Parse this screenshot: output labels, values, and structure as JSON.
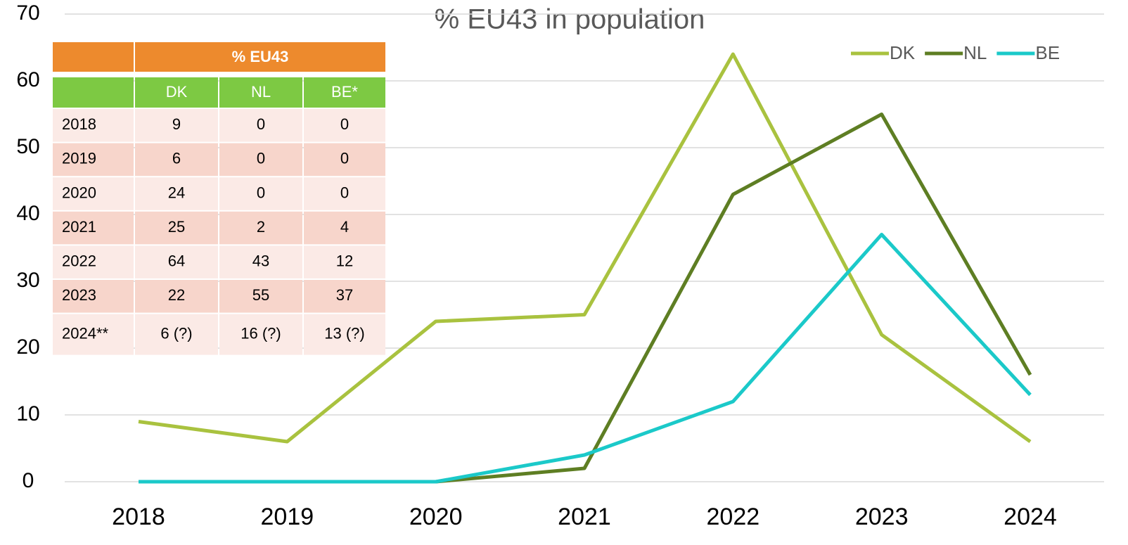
{
  "chart_data": {
    "type": "line",
    "title": "% EU43 in population",
    "x": [
      "2018",
      "2019",
      "2020",
      "2021",
      "2022",
      "2023",
      "2024"
    ],
    "series": [
      {
        "name": "DK",
        "color": "#a9c23f",
        "values": [
          9,
          6,
          24,
          25,
          64,
          22,
          6
        ]
      },
      {
        "name": "NL",
        "color": "#5e7e23",
        "values": [
          0,
          0,
          0,
          2,
          43,
          55,
          16
        ]
      },
      {
        "name": "BE",
        "color": "#1bc9c9",
        "values": [
          0,
          0,
          0,
          4,
          12,
          37,
          13
        ]
      }
    ],
    "ylim": [
      0,
      70
    ],
    "yticks": [
      0,
      10,
      20,
      30,
      40,
      50,
      60,
      70
    ],
    "grid": true,
    "legend": "top-right"
  },
  "table": {
    "header": "% EU43",
    "columns": [
      "DK",
      "NL",
      "BE*"
    ],
    "rows": [
      [
        "2018",
        9,
        0,
        0
      ],
      [
        "2019",
        6,
        0,
        0
      ],
      [
        "2020",
        24,
        0,
        0
      ],
      [
        "2021",
        25,
        2,
        4
      ],
      [
        "2022",
        64,
        43,
        12
      ],
      [
        "2023",
        22,
        55,
        37
      ],
      [
        "2024**",
        "6 (?)",
        "16 (?)",
        "13 (?)"
      ]
    ]
  }
}
